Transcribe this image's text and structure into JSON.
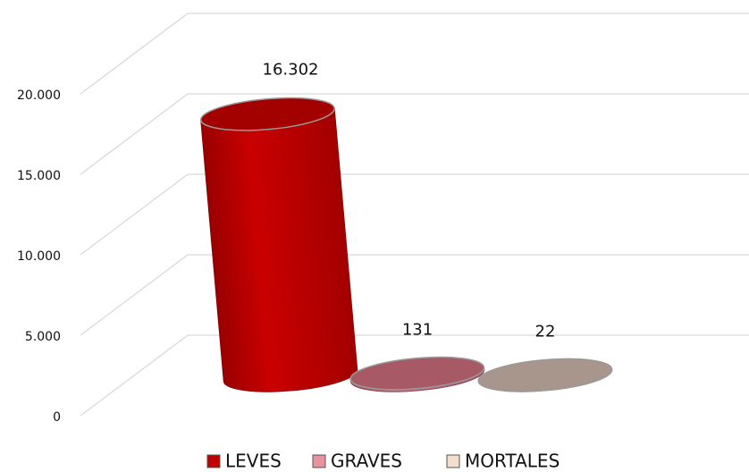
{
  "chart_data": {
    "type": "bar3d",
    "categories": [
      "LEVES",
      "GRAVES",
      "MORTALES"
    ],
    "values": [
      16302,
      131,
      22
    ],
    "value_labels": [
      "16.302",
      "131",
      "22"
    ],
    "colors": [
      "#c00000",
      "#c46a78",
      "#c6b1a6"
    ],
    "legend_colors": [
      "#c00000",
      "#e8939c",
      "#f3ddcc"
    ],
    "ylim": [
      0,
      20000
    ],
    "yticks": [
      {
        "value": 0,
        "label": "0"
      },
      {
        "value": 5000,
        "label": "5.000"
      },
      {
        "value": 10000,
        "label": "10.000"
      },
      {
        "value": 15000,
        "label": "15.000"
      },
      {
        "value": 20000,
        "label": "20.000"
      }
    ],
    "grid": true,
    "legend": "bottom"
  }
}
